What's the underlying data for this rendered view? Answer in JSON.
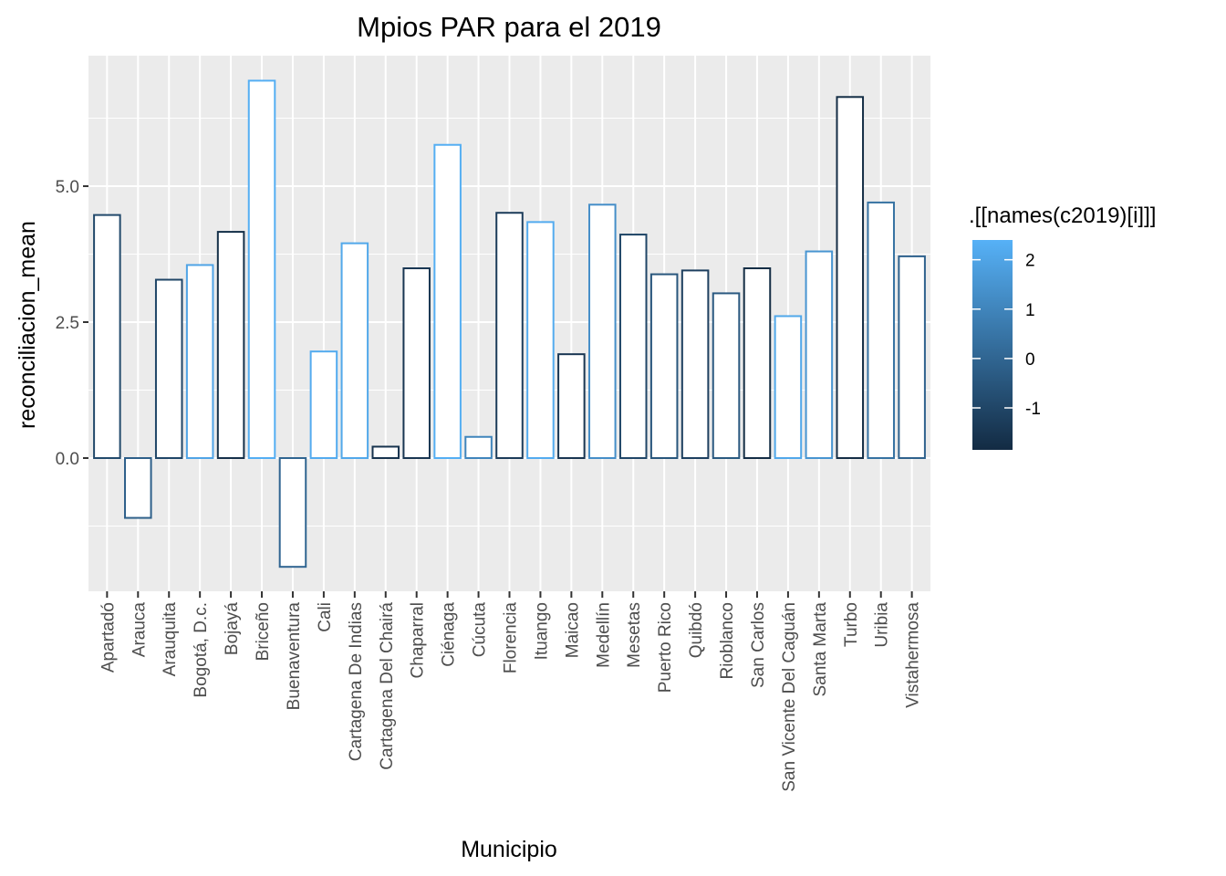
{
  "chart_data": {
    "type": "bar",
    "title": "Mpios PAR para el 2019",
    "xlabel": "Municipio",
    "ylabel": "reconciliacion_mean",
    "ylim": [
      -2.45,
      7.4
    ],
    "y_ticks": [
      {
        "value": 0.0,
        "label": "0.0"
      },
      {
        "value": 2.5,
        "label": "2.5"
      },
      {
        "value": 5.0,
        "label": "5.0"
      }
    ],
    "grid": true,
    "fill": "#ffffff",
    "categories": [
      "Apartadó",
      "Arauca",
      "Arauquita",
      "Bogotá, D.c.",
      "Bojayá",
      "Briceño",
      "Buenaventura",
      "Cali",
      "Cartagena De Indias",
      "Cartagena Del Chairá",
      "Chaparral",
      "Ciénaga",
      "Cúcuta",
      "Florencia",
      "Ituango",
      "Maicao",
      "Medellín",
      "Mesetas",
      "Puerto Rico",
      "Quibdó",
      "Rioblanco",
      "San Carlos",
      "San Vicente Del Caguán",
      "Santa Marta",
      "Turbo",
      "Uribia",
      "Vistahermosa"
    ],
    "values": [
      4.47,
      -1.1,
      3.28,
      3.55,
      4.16,
      6.94,
      -2.0,
      1.96,
      3.95,
      0.21,
      3.49,
      5.76,
      0.39,
      4.51,
      4.34,
      1.91,
      4.66,
      4.11,
      3.38,
      3.45,
      3.03,
      3.49,
      2.61,
      3.8,
      6.64,
      4.7,
      3.71
    ],
    "color_values": [
      -0.9,
      -0.2,
      -1.0,
      2.0,
      -1.7,
      2.3,
      0.0,
      2.2,
      2.1,
      -1.6,
      -1.5,
      2.3,
      1.0,
      -1.3,
      2.2,
      -1.5,
      1.3,
      -1.0,
      -0.5,
      -1.2,
      -0.4,
      -1.8,
      2.1,
      1.5,
      -1.8,
      0.4,
      -0.1
    ],
    "legend": {
      "title": ".[[names(c2019)[i]]]",
      "position": "right",
      "min": -1.85,
      "max": 2.4,
      "low_color": "#132B43",
      "high_color": "#56B1F7",
      "breaks": [
        {
          "value": 2,
          "label": "2"
        },
        {
          "value": 1,
          "label": "1"
        },
        {
          "value": 0,
          "label": "0"
        },
        {
          "value": -1,
          "label": "-1"
        }
      ]
    },
    "colors": {
      "panel": "#ebebeb",
      "grid": "#ffffff",
      "tick_text": "#4d4d4d",
      "tick_mark": "#333333"
    }
  }
}
